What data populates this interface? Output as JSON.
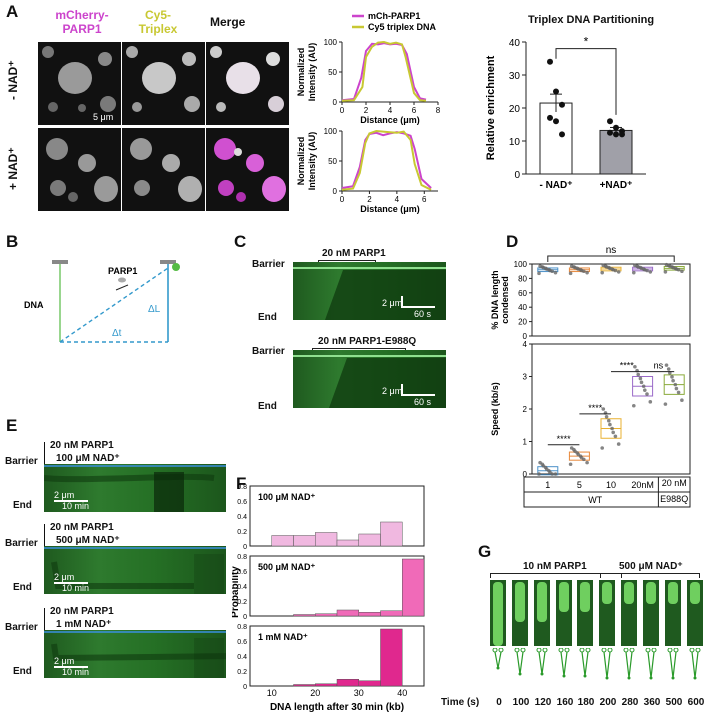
{
  "panelA": {
    "label": "A",
    "col1": "mCherry-\nPARP1",
    "col2": "Cy5-\nTriplex",
    "col3": "Merge",
    "row1": "- NAD⁺",
    "row2": "+ NAD⁺",
    "scale": "5 μm",
    "profile_legend": [
      "mCh-PARP1",
      "Cy5 triplex DNA"
    ],
    "profile_ylabel": "Normalized\nIntensity (AU)",
    "profile_xlabel": "Distance (μm)",
    "bar_title": "Triplex DNA Partitioning",
    "bar_ylabel": "Relative enrichment",
    "bar_sig": "*",
    "colors": {
      "parp1": "#cc44cc",
      "triplex": "#c8c832",
      "noNAD": "#ffffff",
      "NAD": "#a0a0a8"
    }
  },
  "panelB": {
    "label": "B",
    "parp1": "PARP1",
    "dna": "DNA",
    "dL": "ΔL",
    "dt": "Δt"
  },
  "panelC": {
    "label": "C",
    "k1_title": "20 nM PARP1",
    "k2_title": "20 nM PARP1-E988Q",
    "barrier": "Barrier",
    "end": "End",
    "sb_um": "2 μm",
    "sb_s": "60 s"
  },
  "panelD": {
    "label": "D",
    "top_ylabel": "% DNA length\ncondensed",
    "top_sig": "ns",
    "bot_ylabel": "Speed (kb/s)",
    "sig": [
      "****",
      "****",
      "****",
      "ns"
    ],
    "xcats": [
      "1",
      "5",
      "10",
      "20nM",
      "20 nM\nE988Q"
    ],
    "xgroups": [
      "WT",
      "E988Q"
    ]
  },
  "panelE": {
    "label": "E",
    "rows": [
      {
        "title1": "20 nM PARP1",
        "title2": "100 μM NAD⁺",
        "sb_um": "2 μm",
        "sb_t": "10 min"
      },
      {
        "title1": "20 nM PARP1",
        "title2": "500 μM NAD⁺",
        "sb_um": "2 μm",
        "sb_t": "10 min"
      },
      {
        "title1": "20 nM PARP1",
        "title2": "1 mM NAD⁺",
        "sb_um": "2 μm",
        "sb_t": "10 min"
      }
    ],
    "barrier": "Barrier",
    "end": "End"
  },
  "panelF": {
    "label": "F",
    "ylabel": "Probability",
    "xlabel": "DNA length after 30 min (kb)",
    "xticks": [
      "10",
      "20",
      "30",
      "40"
    ]
  },
  "panelG": {
    "label": "G",
    "title1": "10 nM PARP1",
    "title2": "500 μM NAD⁺",
    "time_label": "Time (s)",
    "times": [
      "0",
      "100",
      "120",
      "160",
      "180",
      "200",
      "280",
      "360",
      "500",
      "600"
    ]
  },
  "chart_data": [
    {
      "type": "line",
      "id": "A-profile-noNAD",
      "xlabel": "Distance (μm)",
      "ylabel": "Normalized Intensity (AU)",
      "xlim": [
        0,
        8
      ],
      "ylim": [
        0,
        100
      ],
      "xticks": [
        0,
        2,
        4,
        6,
        8
      ],
      "yticks": [
        0,
        50,
        100
      ],
      "series": [
        {
          "name": "mCh-PARP1",
          "x": [
            0,
            1,
            1.6,
            2,
            2.5,
            3,
            3.5,
            4,
            4.5,
            5,
            5.4,
            6,
            6.5,
            7
          ],
          "y": [
            3,
            5,
            40,
            85,
            97,
            96,
            98,
            96,
            97,
            95,
            80,
            25,
            6,
            4
          ]
        },
        {
          "name": "Cy5 triplex DNA",
          "x": [
            0,
            1,
            1.7,
            2,
            2.5,
            3,
            3.5,
            4,
            4.5,
            5,
            5.3,
            6,
            6.5,
            7
          ],
          "y": [
            2,
            3,
            25,
            75,
            92,
            99,
            100,
            97,
            99,
            96,
            75,
            15,
            3,
            2
          ]
        }
      ]
    },
    {
      "type": "line",
      "id": "A-profile-NAD",
      "xlabel": "Distance (μm)",
      "ylabel": "Normalized Intensity (AU)",
      "xlim": [
        0,
        7
      ],
      "ylim": [
        0,
        100
      ],
      "xticks": [
        0,
        2,
        4,
        6
      ],
      "yticks": [
        0,
        50,
        100
      ],
      "series": [
        {
          "name": "mCh-PARP1",
          "x": [
            0,
            0.8,
            1.3,
            1.7,
            2,
            2.5,
            3,
            3.5,
            4,
            4.5,
            5,
            5.3,
            5.8,
            6.5
          ],
          "y": [
            5,
            8,
            40,
            85,
            95,
            97,
            93,
            96,
            98,
            96,
            92,
            70,
            20,
            5
          ]
        },
        {
          "name": "Cy5 triplex DNA",
          "x": [
            0,
            0.8,
            1.3,
            1.7,
            2,
            2.5,
            3,
            3.5,
            4,
            4.5,
            5,
            5.3,
            5.8,
            6.5
          ],
          "y": [
            2,
            4,
            30,
            80,
            96,
            100,
            99,
            98,
            97,
            99,
            85,
            45,
            10,
            2
          ]
        }
      ]
    },
    {
      "type": "bar",
      "id": "A-partitioning",
      "title": "Triplex DNA Partitioning",
      "ylabel": "Relative enrichment",
      "categories": [
        "- NAD⁺",
        "+NAD⁺"
      ],
      "values": [
        21.5,
        13.2
      ],
      "errors": [
        2.7,
        0.9
      ],
      "points": [
        [
          34,
          25,
          21,
          17,
          16,
          12
        ],
        [
          16,
          14,
          13,
          12.5,
          12,
          12
        ]
      ],
      "ylim": [
        0,
        40
      ],
      "yticks": [
        0,
        10,
        20,
        30,
        40
      ]
    },
    {
      "type": "scatter",
      "id": "D-condensed",
      "ylabel": "% DNA length condensed",
      "categories": [
        "1",
        "5",
        "10",
        "20nM",
        "20 nM E988Q"
      ],
      "medians": [
        92,
        92,
        93,
        93,
        94
      ],
      "ylim": [
        0,
        100
      ],
      "yticks": [
        0,
        20,
        40,
        60,
        80,
        100
      ]
    },
    {
      "type": "scatter",
      "id": "D-speed",
      "ylabel": "Speed (kb/s)",
      "categories": [
        "1",
        "5",
        "10",
        "20nM",
        "20 nM E988Q"
      ],
      "medians": [
        0.1,
        0.55,
        1.4,
        2.7,
        2.75
      ],
      "ylim": [
        0,
        4
      ],
      "yticks": [
        0,
        1,
        2,
        3,
        4
      ]
    },
    {
      "type": "bar",
      "id": "F-100uM",
      "title": "100 μM NAD⁺",
      "categories": [
        "12.5",
        "17.5",
        "22.5",
        "27.5",
        "32.5",
        "37.5",
        "42.5"
      ],
      "values": [
        0.14,
        0.14,
        0.18,
        0.08,
        0.16,
        0.32,
        0.0
      ],
      "ylim": [
        0,
        0.8
      ]
    },
    {
      "type": "bar",
      "id": "F-500uM",
      "title": "500 μM NAD⁺",
      "categories": [
        "12.5",
        "17.5",
        "22.5",
        "27.5",
        "32.5",
        "37.5",
        "42.5"
      ],
      "values": [
        0.0,
        0.02,
        0.03,
        0.08,
        0.05,
        0.07,
        0.76
      ],
      "ylim": [
        0,
        0.8
      ]
    },
    {
      "type": "bar",
      "id": "F-1mM",
      "title": "1 mM NAD⁺",
      "xlabel": "DNA length after 30 min (kb)",
      "ylabel": "Probability",
      "categories": [
        "12.5",
        "17.5",
        "22.5",
        "27.5",
        "32.5",
        "37.5",
        "42.5"
      ],
      "values": [
        0.0,
        0.02,
        0.03,
        0.09,
        0.07,
        0.76,
        0.0
      ],
      "ylim": [
        0,
        0.8
      ],
      "yticks": [
        0,
        0.2,
        0.4,
        0.6,
        0.8
      ],
      "xticks": [
        10,
        20,
        30,
        40
      ]
    }
  ]
}
